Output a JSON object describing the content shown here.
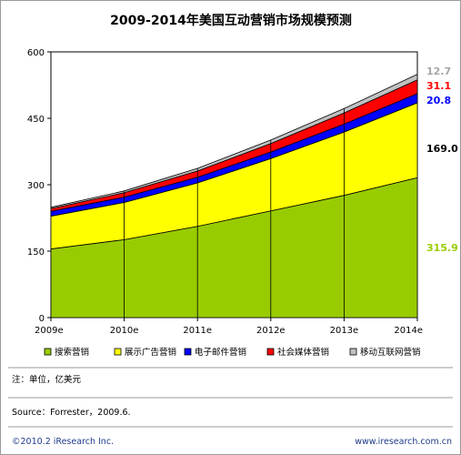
{
  "chart_data": {
    "type": "area",
    "stacked": true,
    "title": "2009-2014年美国互动营销市场规模预测",
    "xlabel": "",
    "ylabel": "",
    "categories": [
      "2009e",
      "2010e",
      "2011e",
      "2012e",
      "2013e",
      "2014e"
    ],
    "ylim": [
      0,
      600
    ],
    "yticks": [
      "0",
      "150",
      "300",
      "450",
      "600"
    ],
    "series": [
      {
        "name": "搜索营销",
        "color": "#99cc00",
        "values": [
          155,
          176,
          206,
          241,
          276,
          315.9
        ],
        "end_label": "315.9"
      },
      {
        "name": "展示广告营销",
        "color": "#ffff00",
        "values": [
          74,
          84,
          98,
          118,
          143,
          169.0
        ],
        "end_label": "169.0"
      },
      {
        "name": "电子邮件营销",
        "color": "#0000ff",
        "values": [
          11,
          12,
          13,
          15,
          18,
          20.8
        ],
        "end_label": "20.8"
      },
      {
        "name": "社会媒体营销",
        "color": "#ff0000",
        "values": [
          6,
          10,
          14,
          19,
          25,
          31.1
        ],
        "end_label": "31.1"
      },
      {
        "name": "移动互联网营销",
        "color": "#c0c0c0",
        "values": [
          3,
          4,
          6,
          8,
          10,
          12.7
        ],
        "end_label": "12.7"
      }
    ],
    "end_label_colors": [
      "#99cc00",
      "#000000",
      "#0000ff",
      "#ff0000",
      "#a6a6a6"
    ],
    "grid": false,
    "legend_position": "bottom"
  },
  "note": "注：单位，亿美元",
  "source": "Source：Forrester，2009.6.",
  "copyright": "©2010.2 iResearch Inc.",
  "website": "www.iresearch.com.cn"
}
